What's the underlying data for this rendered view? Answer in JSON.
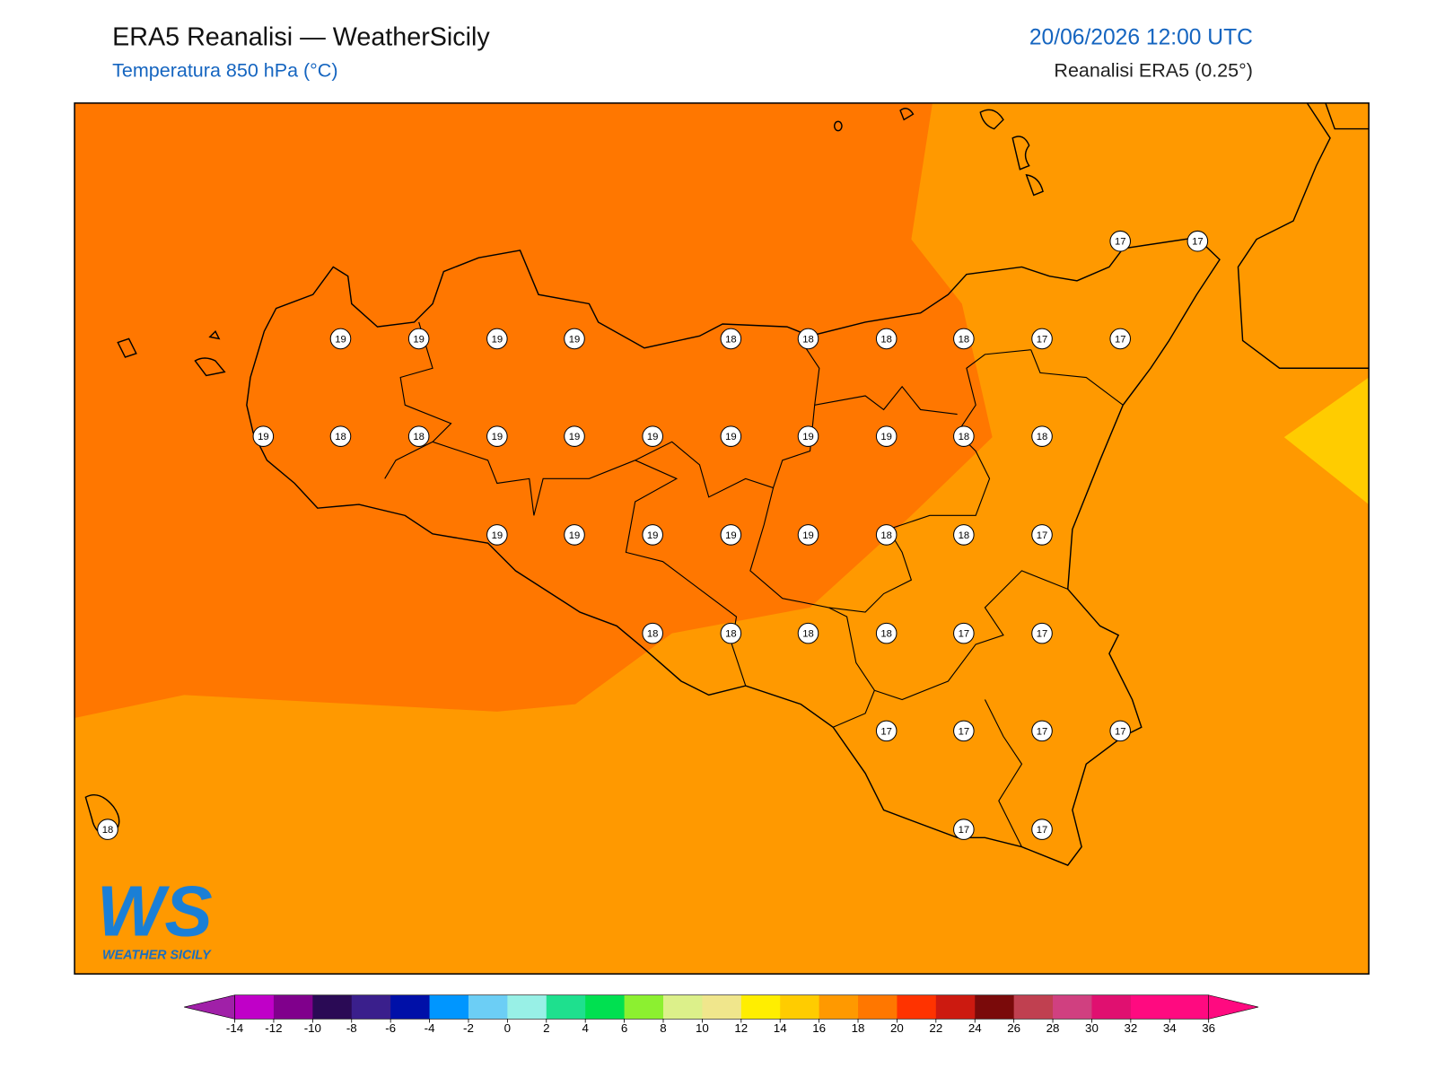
{
  "header": {
    "title": "ERA5 Reanalisi — WeatherSicily",
    "subtitle": "Temperatura 850 hPa (°C)",
    "datetime": "20/06/2026 12:00 UTC",
    "source": "Reanalisi ERA5 (0.25°)"
  },
  "map": {
    "stations": [
      17,
      17,
      19,
      19,
      19,
      19,
      18,
      18,
      18,
      18,
      17,
      17,
      19,
      18,
      18,
      19,
      19,
      19,
      19,
      19,
      19,
      18,
      18,
      19,
      19,
      19,
      19,
      19,
      18,
      18,
      17,
      18,
      18,
      18,
      18,
      17,
      17,
      17,
      17,
      17,
      17,
      18,
      17,
      17
    ],
    "fills": {
      "warm": "#ff7700",
      "base": "#ff9900",
      "cool": "#ffcc00"
    }
  },
  "logo": {
    "mark": "WS",
    "text": "WEATHER SICILY"
  },
  "colorbar": {
    "ticks": [
      -14,
      -12,
      -10,
      -8,
      -6,
      -4,
      -2,
      0,
      2,
      4,
      6,
      8,
      10,
      12,
      14,
      16,
      18,
      20,
      22,
      24,
      26,
      28,
      30,
      32,
      34,
      36
    ],
    "colors": [
      "#c000c8",
      "#80008c",
      "#2a0a55",
      "#3a1f8c",
      "#0010a8",
      "#0096ff",
      "#6ccef5",
      "#98f0e6",
      "#1ee08e",
      "#00e050",
      "#8cf030",
      "#dcf08a",
      "#f0e68c",
      "#ffee00",
      "#ffcc00",
      "#ff9900",
      "#ff7700",
      "#ff3300",
      "#cc1a10",
      "#7a0a0a",
      "#c04050",
      "#d04080",
      "#e01070",
      "#ff0a80",
      "#ff0a80"
    ],
    "under": "#a020a8",
    "over": "#ff0a80"
  }
}
